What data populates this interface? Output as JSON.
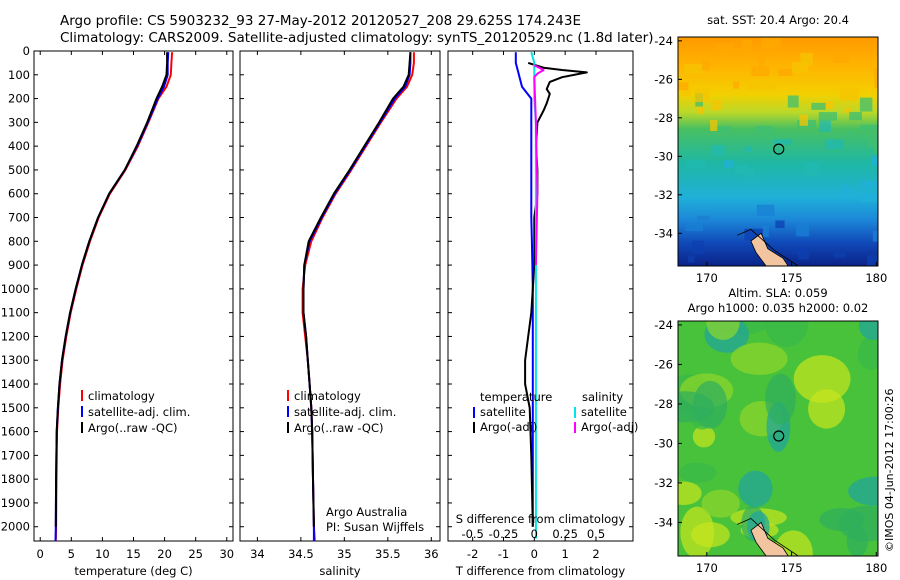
{
  "header": {
    "line1": "Argo profile: CS 5903232_93 27-May-2012 20120527_208 29.625S 174.243E",
    "line2": "Climatology: CARS2009. Satellite-adjusted climatology: synTS_20120529.nc (1.8d later)"
  },
  "colors": {
    "climatology": "#ff0000",
    "satellite": "#0000ff",
    "argo": "#000000",
    "salinity_satellite": "#00e5e5",
    "salinity_argo": "#ff00ff"
  },
  "chart_data": [
    {
      "id": "temperature",
      "type": "line",
      "xlabel": "temperature (deg C)",
      "xlim": [
        -1,
        31
      ],
      "xticks": [
        0,
        5,
        10,
        15,
        20,
        25,
        30
      ],
      "ylim": [
        0,
        2060
      ],
      "yticks": [
        0,
        100,
        200,
        300,
        400,
        500,
        600,
        700,
        800,
        900,
        1000,
        1100,
        1200,
        1300,
        1400,
        1500,
        1600,
        1700,
        1800,
        1900,
        2000
      ],
      "legend": [
        "climatology",
        "satellite-adj. clim.",
        "Argo(..raw -QC)"
      ],
      "legend_placement": "lower-middle",
      "series": [
        {
          "name": "climatology",
          "color": "#ff0000",
          "x": [
            21.2,
            21.1,
            21.0,
            20.3,
            19.0,
            17.4,
            15.7,
            13.7,
            11.2,
            9.4,
            8.0,
            6.8,
            5.8,
            4.9,
            4.2,
            3.6,
            3.2,
            2.9,
            2.7,
            2.6,
            2.55,
            2.5
          ],
          "y": [
            5,
            50,
            100,
            150,
            200,
            300,
            400,
            500,
            600,
            700,
            800,
            900,
            1000,
            1100,
            1200,
            1300,
            1400,
            1500,
            1600,
            1800,
            2000,
            2060
          ]
        },
        {
          "name": "satellite-adj. clim.",
          "color": "#0000ff",
          "x": [
            20.6,
            20.5,
            20.5,
            19.9,
            18.9,
            17.3,
            15.6,
            13.6,
            11.1,
            9.3,
            7.9,
            6.7,
            5.7,
            4.8,
            4.1,
            3.5,
            3.1,
            2.85,
            2.65,
            2.55,
            2.5,
            2.45
          ],
          "y": [
            5,
            50,
            100,
            150,
            200,
            300,
            400,
            500,
            600,
            700,
            800,
            900,
            1000,
            1100,
            1200,
            1300,
            1400,
            1500,
            1600,
            1800,
            2000,
            2060
          ]
        },
        {
          "name": "Argo(..raw -QC)",
          "color": "#000000",
          "x": [
            20.4,
            20.4,
            20.3,
            19.6,
            18.7,
            17.2,
            15.5,
            13.6,
            11.1,
            9.3,
            7.9,
            6.7,
            5.7,
            4.8,
            4.1,
            3.5,
            3.1,
            2.85,
            2.65,
            2.55,
            2.5
          ],
          "y": [
            5,
            50,
            100,
            150,
            200,
            300,
            400,
            500,
            600,
            700,
            800,
            900,
            1000,
            1100,
            1200,
            1300,
            1400,
            1500,
            1600,
            1800,
            2000
          ]
        }
      ]
    },
    {
      "id": "salinity",
      "type": "line",
      "xlabel": "salinity",
      "xlim": [
        33.8,
        36.1
      ],
      "xticks": [
        34,
        34.5,
        35,
        35.5,
        36
      ],
      "ylim": [
        0,
        2060
      ],
      "legend": [
        "climatology",
        "satellite-adj. clim.",
        "Argo(..raw -QC)"
      ],
      "legend_placement": "lower-middle",
      "annotation": [
        "Argo Australia",
        "PI: Susan Wijffels"
      ],
      "series": [
        {
          "name": "climatology",
          "color": "#ff0000",
          "x": [
            35.8,
            35.8,
            35.78,
            35.72,
            35.6,
            35.42,
            35.25,
            35.08,
            34.9,
            34.75,
            34.62,
            34.55,
            34.52,
            34.52,
            34.55,
            34.58,
            34.6,
            34.62,
            34.63,
            34.64,
            34.65,
            34.66
          ],
          "y": [
            5,
            50,
            100,
            150,
            200,
            300,
            400,
            500,
            600,
            700,
            800,
            900,
            1000,
            1100,
            1200,
            1300,
            1400,
            1500,
            1600,
            1800,
            2000,
            2060
          ]
        },
        {
          "name": "satellite-adj. clim.",
          "color": "#0000ff",
          "x": [
            35.76,
            35.76,
            35.75,
            35.7,
            35.58,
            35.41,
            35.24,
            35.07,
            34.89,
            34.74,
            34.6,
            34.54,
            34.53,
            34.53,
            34.56,
            34.58,
            34.6,
            34.62,
            34.63,
            34.64,
            34.65,
            34.65
          ],
          "y": [
            5,
            50,
            100,
            150,
            200,
            300,
            400,
            500,
            600,
            700,
            800,
            900,
            1000,
            1100,
            1200,
            1300,
            1400,
            1500,
            1600,
            1800,
            2000,
            2060
          ]
        },
        {
          "name": "Argo(..raw -QC)",
          "color": "#000000",
          "x": [
            35.76,
            35.75,
            35.74,
            35.68,
            35.56,
            35.4,
            35.23,
            35.06,
            34.88,
            34.73,
            34.59,
            34.54,
            34.53,
            34.53,
            34.56,
            34.58,
            34.6,
            34.62,
            34.63,
            34.64,
            34.65
          ],
          "y": [
            5,
            50,
            100,
            150,
            200,
            300,
            400,
            500,
            600,
            700,
            800,
            900,
            1000,
            1100,
            1200,
            1300,
            1400,
            1500,
            1600,
            1800,
            2000
          ]
        }
      ]
    },
    {
      "id": "difference",
      "type": "line",
      "xlabel": "T difference from climatology",
      "xlabel_top": "S difference from climatology",
      "xlim": [
        -2.8,
        3.2
      ],
      "xticks": [
        -2,
        -1,
        0,
        1,
        2
      ],
      "xticks_S": [
        "-0.5",
        "-0.25",
        "0",
        "0.25",
        "0.5"
      ],
      "ylim": [
        0,
        2060
      ],
      "legend_temperature": [
        "temperature",
        "satellite",
        "Argo(-adj)"
      ],
      "legend_salinity": [
        "salinity",
        "satellite",
        "Argo(-adj)"
      ],
      "legend_placement": "lower-middle",
      "series": [
        {
          "name": "satellite",
          "color": "#0000ff",
          "x": [
            -0.6,
            -0.6,
            -0.5,
            -0.4,
            -0.1,
            -0.1,
            -0.1,
            -0.1,
            -0.1,
            -0.1,
            -0.08,
            -0.05,
            -0.05,
            -0.05,
            -0.05
          ],
          "y": [
            5,
            50,
            100,
            150,
            200,
            300,
            400,
            500,
            600,
            700,
            800,
            1000,
            1200,
            1500,
            2000
          ]
        },
        {
          "name": "Argo(-adj)",
          "color": "#000000",
          "x": [
            -0.2,
            0.3,
            0.9,
            1.7,
            0.9,
            0.5,
            0.4,
            0.5,
            0.4,
            0.3,
            0.1,
            0.05,
            0.1,
            0.1,
            0.0,
            0.0,
            -0.1,
            -0.2,
            -0.3,
            -0.3,
            -0.15,
            -0.1,
            -0.05
          ],
          "y": [
            50,
            70,
            80,
            90,
            110,
            130,
            160,
            180,
            220,
            250,
            300,
            400,
            500,
            600,
            700,
            900,
            1100,
            1200,
            1300,
            1400,
            1500,
            1700,
            2000
          ]
        },
        {
          "name": "satellite",
          "color": "#00e5e5",
          "x": [
            -0.1,
            0.0,
            0.0,
            0.0,
            0.05,
            0.05,
            0.05,
            0.05,
            0.05,
            0.05,
            0.05
          ],
          "y": [
            5,
            50,
            100,
            200,
            300,
            500,
            800,
            1100,
            1400,
            1700,
            2050
          ]
        },
        {
          "name": "Argo(-adj)",
          "color": "#ff00ff",
          "x": [
            0.0,
            0.3,
            0.1,
            0.0,
            0.05,
            0.1,
            0.05
          ],
          "y": [
            60,
            80,
            95,
            110,
            300,
            600,
            900
          ]
        }
      ]
    }
  ],
  "maps": [
    {
      "id": "sst-map",
      "title": "sat. SST: 20.4 Argo: 20.4",
      "lon_ticks": [
        "170",
        "175",
        "180"
      ],
      "lat_ticks": [
        "-24",
        "-26",
        "-28",
        "-30",
        "-32",
        "-34"
      ],
      "xlim": [
        168.3,
        180.1
      ],
      "ylim": [
        -35.7,
        -23.8
      ],
      "marker": {
        "lon": 174.243,
        "lat": -29.625
      }
    },
    {
      "id": "sla-map",
      "title_line1": "Altim. SLA: 0.059",
      "title_line2": "Argo h1000: 0.035 h2000: 0.02",
      "lon_ticks": [
        "170",
        "175",
        "180"
      ],
      "lat_ticks": [
        "-24",
        "-26",
        "-28",
        "-30",
        "-32",
        "-34"
      ],
      "xlim": [
        168.3,
        180.1
      ],
      "ylim": [
        -35.7,
        -23.8
      ],
      "marker": {
        "lon": 174.243,
        "lat": -29.625
      }
    }
  ],
  "stamp": "©IMOS 04-Jun-2012 17:00:26"
}
